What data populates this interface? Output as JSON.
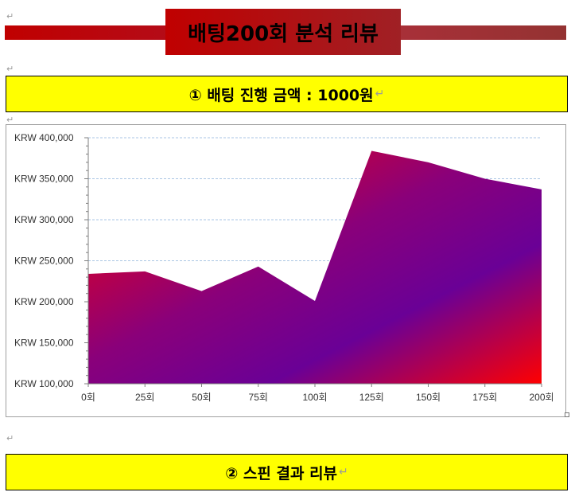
{
  "header": {
    "title": "배팅200회 분석 리뷰"
  },
  "paragraph_mark": "↵",
  "section1": {
    "title": "① 배팅 진행 금액 : 1000원",
    "mark": "↵"
  },
  "section2": {
    "title": "② 스핀 결과 리뷰",
    "mark": "↵"
  },
  "colors": {
    "banner": "#c00000",
    "section_bg": "#ffff00",
    "gradient_red": "#ff0000",
    "gradient_purple": "#6a0096"
  },
  "chart_data": {
    "type": "area",
    "categories": [
      "0회",
      "25회",
      "50회",
      "75회",
      "100회",
      "125회",
      "150회",
      "175회",
      "200회"
    ],
    "values": [
      234000,
      237000,
      213000,
      243000,
      201000,
      384000,
      370000,
      350000,
      337000
    ],
    "ylim": [
      100000,
      400000
    ],
    "y_ticks": [
      "KRW 100,000",
      "KRW 150,000",
      "KRW 200,000",
      "KRW 250,000",
      "KRW 300,000",
      "KRW 350,000",
      "KRW 400,000"
    ],
    "y_tick_values": [
      100000,
      150000,
      200000,
      250000,
      300000,
      350000,
      400000
    ],
    "grid": true,
    "legend": "none"
  }
}
